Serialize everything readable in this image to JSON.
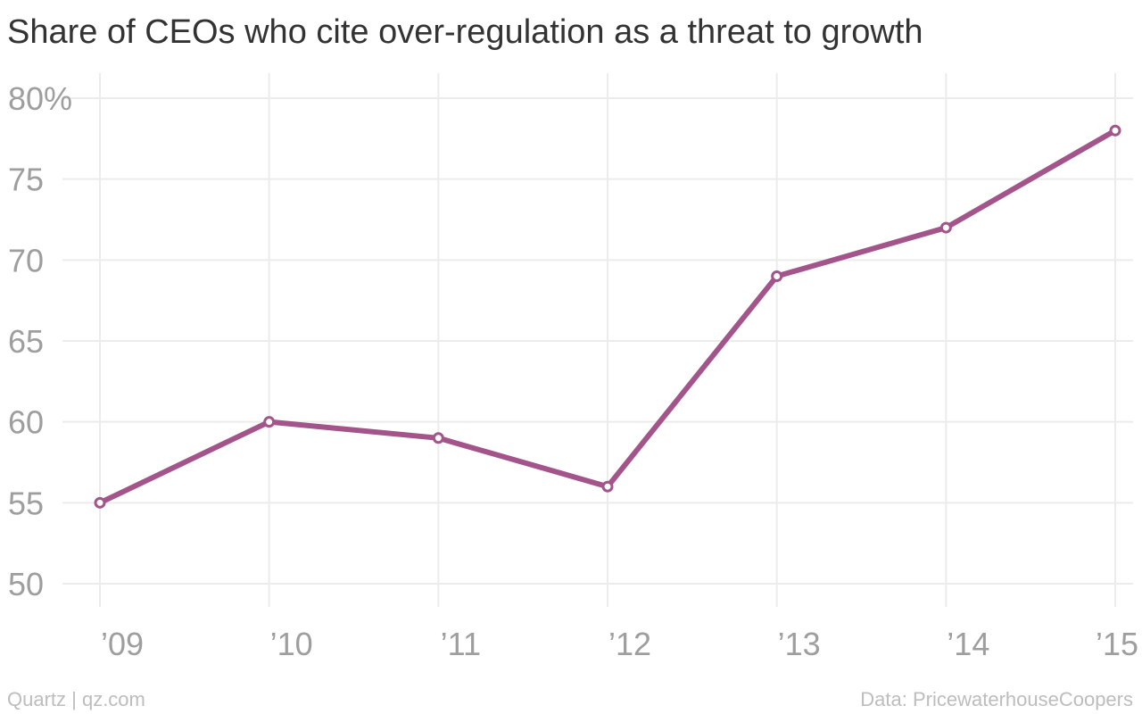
{
  "header": {
    "title": "Share of CEOs who cite over-regulation as a threat to growth"
  },
  "footer": {
    "credit": "Quartz | qz.com",
    "source": "Data: PricewaterhouseCoopers"
  },
  "chart_data": {
    "type": "line",
    "title": "Share of CEOs who cite over-regulation as a threat to growth",
    "xlabel": "",
    "ylabel": "",
    "categories": [
      "’09",
      "’10",
      "’11",
      "’12",
      "’13",
      "’14",
      "’15"
    ],
    "series": [
      {
        "values": [
          55,
          60,
          59,
          56,
          69,
          72,
          78
        ]
      }
    ],
    "ylim": [
      50,
      80
    ],
    "y_ticks": [
      50,
      55,
      60,
      65,
      70,
      75,
      80
    ],
    "y_tick_labels": [
      "50",
      "55",
      "60",
      "65",
      "70",
      "75",
      "80%"
    ],
    "grid": true,
    "legend": "none",
    "colors": {
      "line": "#a3548a",
      "grid": "#ececec",
      "tick_label": "#9e9e9e",
      "marker_fill": "#ffffff"
    }
  }
}
